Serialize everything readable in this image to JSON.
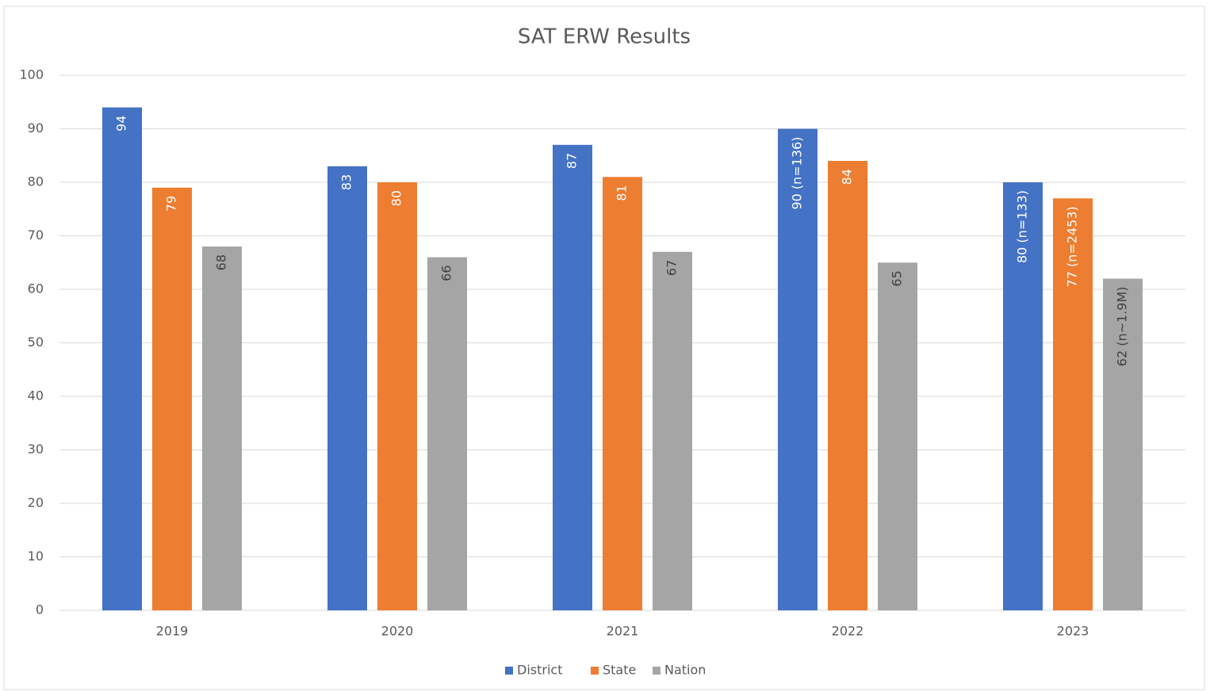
{
  "chart_data": {
    "type": "bar",
    "title": "SAT ERW Results",
    "categories": [
      "2019",
      "2020",
      "2021",
      "2022",
      "2023"
    ],
    "series": [
      {
        "name": "District",
        "color": "#4472c4",
        "values": [
          94,
          83,
          87,
          90,
          80
        ],
        "value_labels": [
          "94",
          "83",
          "87",
          "90 (n=136)",
          "80 (n=133)"
        ]
      },
      {
        "name": "State",
        "color": "#ed7d31",
        "values": [
          79,
          80,
          81,
          84,
          77
        ],
        "value_labels": [
          "79",
          "80",
          "81",
          "84",
          "77 (n=2453)"
        ]
      },
      {
        "name": "Nation",
        "color": "#a5a5a5",
        "values": [
          68,
          66,
          67,
          65,
          62
        ],
        "value_labels": [
          "68",
          "66",
          "67",
          "65",
          "62 (n~1.9M)"
        ]
      }
    ],
    "ylim": [
      0,
      100
    ],
    "yticks": [
      0,
      10,
      20,
      30,
      40,
      50,
      60,
      70,
      80,
      90,
      100
    ],
    "grid": true,
    "legend": "bottom"
  }
}
